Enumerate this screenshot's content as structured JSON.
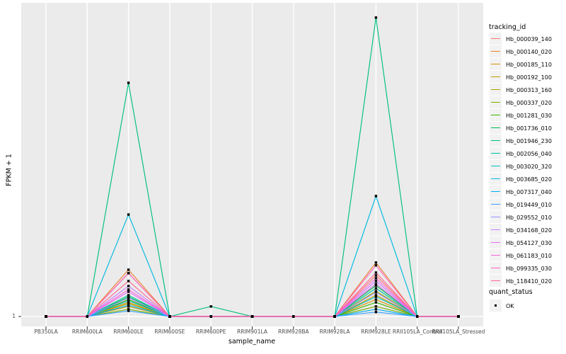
{
  "figure": {
    "ylabel": "FPKM + 1",
    "xlabel": "sample_name",
    "y_tick_label": "1",
    "legend_title": "tracking_id",
    "quant_legend_title": "quant_status",
    "quant_legend_item": "OK"
  },
  "colors": {
    "panel_bg": "#EBEBEB",
    "grid": "#FFFFFF",
    "axis_text": "#4D4D4D",
    "tick_mark": "#333333",
    "text": "#000000",
    "legend_key_bg": "#F2F2F2",
    "marker": "#000000"
  },
  "chart_data": {
    "type": "line",
    "title": "",
    "xlabel": "sample_name",
    "ylabel": "FPKM + 1",
    "grid": true,
    "legend_title": "tracking_id",
    "legend_position": "right",
    "marker_legend": {
      "title": "quant_status",
      "items": [
        {
          "label": "OK",
          "marker": "small black square"
        }
      ]
    },
    "categories": [
      "PB350LA",
      "RRIM600LA",
      "RRIM600LE",
      "RRIM600SE",
      "RRIM600PE",
      "RRIM901LA",
      "RRIM928BA",
      "RRIM928LA",
      "RRIM928LE",
      "RRII105LA_Control",
      "RRII105LA_Stressed"
    ],
    "y_axis": {
      "tick_labels": [
        "1"
      ],
      "note": "Only the value 1 (baseline, FPKM+1=1) is labeled on the y axis; series values are expressed as percent of panel height above that baseline."
    },
    "series": [
      {
        "name": "Hb_000039_140",
        "color": "#F8766D",
        "values": [
          0,
          0,
          13.8,
          0,
          0,
          0,
          0,
          0,
          13.1,
          0,
          0
        ]
      },
      {
        "name": "Hb_000140_020",
        "color": "#EA8331",
        "values": [
          0,
          0,
          14.9,
          0,
          0,
          0,
          0,
          0,
          17.2,
          0,
          0
        ]
      },
      {
        "name": "Hb_000185_110",
        "color": "#D89000",
        "values": [
          0,
          0,
          4.5,
          0,
          0,
          0,
          0,
          0,
          5.4,
          0,
          0
        ]
      },
      {
        "name": "Hb_000192_100",
        "color": "#C09B00",
        "values": [
          0,
          0,
          3.2,
          0,
          0,
          0,
          0,
          0,
          6.8,
          0,
          0
        ]
      },
      {
        "name": "Hb_000313_160",
        "color": "#A3A500",
        "values": [
          0,
          0,
          4.1,
          0,
          0,
          0,
          0,
          0,
          8.1,
          0,
          0
        ]
      },
      {
        "name": "Hb_000337_020",
        "color": "#7CAE00",
        "values": [
          0,
          0,
          2.3,
          0,
          0,
          0,
          0,
          0,
          3.2,
          0,
          0
        ]
      },
      {
        "name": "Hb_001281_030",
        "color": "#39B600",
        "values": [
          0,
          0,
          5.4,
          0,
          0,
          0,
          0,
          0,
          4.5,
          0,
          0
        ]
      },
      {
        "name": "Hb_001736_010",
        "color": "#00BB4E",
        "values": [
          0,
          0,
          6.3,
          0,
          0,
          0,
          0,
          0,
          9.9,
          0,
          0
        ]
      },
      {
        "name": "Hb_001946_230",
        "color": "#00BF7D",
        "values": [
          0,
          0,
          74.5,
          0,
          3.2,
          0,
          0,
          0,
          95.3,
          0,
          0
        ]
      },
      {
        "name": "Hb_002056_040",
        "color": "#00C1A3",
        "values": [
          0,
          0,
          6.8,
          0,
          0,
          0,
          0,
          0,
          9.0,
          0,
          0
        ]
      },
      {
        "name": "Hb_003020_320",
        "color": "#00BFC4",
        "values": [
          0,
          0,
          5.0,
          0,
          0,
          0,
          0,
          0,
          6.3,
          0,
          0
        ]
      },
      {
        "name": "Hb_003685_020",
        "color": "#00BAE0",
        "values": [
          0,
          0,
          32.5,
          0,
          0,
          0,
          0,
          0,
          38.4,
          0,
          0
        ]
      },
      {
        "name": "Hb_007317_040",
        "color": "#00B0F6",
        "values": [
          0,
          0,
          3.6,
          0,
          0,
          0,
          0,
          0,
          2.3,
          0,
          0
        ]
      },
      {
        "name": "Hb_019449_010",
        "color": "#35A2FF",
        "values": [
          0,
          0,
          1.8,
          0,
          0,
          0,
          0,
          0,
          1.4,
          0,
          0
        ]
      },
      {
        "name": "Hb_029552_010",
        "color": "#9590FF",
        "values": [
          0,
          0,
          5.9,
          0,
          0,
          0,
          0,
          0,
          7.7,
          0,
          0
        ]
      },
      {
        "name": "Hb_034168_020",
        "color": "#C77CFF",
        "values": [
          0,
          0,
          9.7,
          0,
          0,
          0,
          0,
          0,
          11.3,
          0,
          0
        ]
      },
      {
        "name": "Hb_054127_030",
        "color": "#E76BF3",
        "values": [
          0,
          0,
          7.9,
          0,
          0,
          0,
          0,
          0,
          10.4,
          0,
          0
        ]
      },
      {
        "name": "Hb_061183_010",
        "color": "#FA62DB",
        "values": [
          0,
          0,
          8.6,
          0,
          0,
          0,
          0,
          0,
          12.2,
          0,
          0
        ]
      },
      {
        "name": "Hb_099335_030",
        "color": "#FF62BC",
        "values": [
          0,
          0,
          13.8,
          0,
          0,
          0,
          0,
          0,
          16.3,
          0,
          0
        ]
      },
      {
        "name": "Hb_118410_020",
        "color": "#FF6A98",
        "values": [
          0,
          0,
          11.3,
          0,
          0,
          0,
          0,
          0,
          14.0,
          0,
          0
        ]
      }
    ]
  }
}
